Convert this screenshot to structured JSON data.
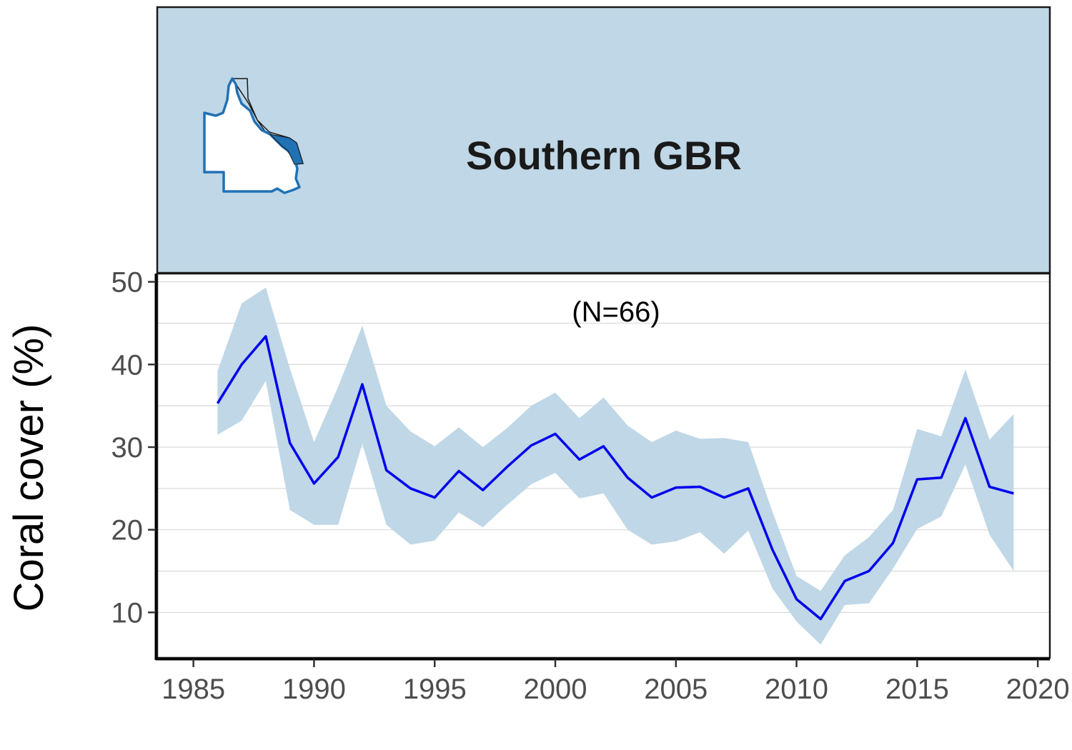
{
  "chart_data": {
    "type": "line",
    "title": "Southern GBR",
    "annotation": "(N=66)",
    "xlabel": "",
    "ylabel": "Coral cover (%)",
    "xlim": [
      1983.5,
      2020.5
    ],
    "ylim": [
      4.5,
      51
    ],
    "xticks": [
      1985,
      1990,
      1995,
      2000,
      2005,
      2010,
      2015,
      2020
    ],
    "yticks": [
      10,
      20,
      30,
      40,
      50
    ],
    "minor_ygrid": [
      15,
      25,
      35,
      45
    ],
    "grid": "horizontal",
    "x": [
      1986,
      1987,
      1988,
      1989,
      1990,
      1991,
      1992,
      1993,
      1994,
      1995,
      1996,
      1997,
      1998,
      1999,
      2000,
      2001,
      2002,
      2003,
      2004,
      2005,
      2006,
      2007,
      2008,
      2009,
      2010,
      2011,
      2012,
      2013,
      2014,
      2015,
      2016,
      2017,
      2018,
      2019
    ],
    "y": [
      35.3,
      40.0,
      43.4,
      30.5,
      25.6,
      28.8,
      37.6,
      27.2,
      25.0,
      23.9,
      27.1,
      24.8,
      27.6,
      30.2,
      31.6,
      28.5,
      30.1,
      26.3,
      23.9,
      25.1,
      25.2,
      23.9,
      25.0,
      17.6,
      11.6,
      9.2,
      13.8,
      15.0,
      18.4,
      26.1,
      26.3,
      33.5,
      25.2,
      24.4
    ],
    "lower": [
      31.5,
      33.2,
      38.0,
      22.4,
      20.6,
      20.6,
      30.4,
      20.6,
      18.2,
      18.7,
      22.1,
      20.3,
      23.0,
      25.5,
      26.9,
      23.8,
      24.4,
      20.0,
      18.2,
      18.6,
      19.7,
      17.1,
      19.9,
      12.9,
      8.9,
      6.1,
      10.9,
      11.1,
      15.3,
      20.1,
      21.6,
      27.9,
      19.4,
      15.0
    ],
    "upper": [
      39.2,
      47.4,
      49.3,
      39.5,
      30.6,
      37.3,
      44.7,
      35.0,
      31.9,
      30.1,
      32.4,
      30.0,
      32.3,
      35.0,
      36.6,
      33.5,
      36.0,
      32.6,
      30.6,
      32.0,
      31.0,
      31.1,
      30.6,
      22.2,
      14.4,
      12.6,
      16.9,
      19.1,
      22.4,
      32.2,
      31.3,
      39.4,
      30.9,
      34.0
    ],
    "colors": {
      "line": "#0000ee",
      "ribbon": "#bfd7e6",
      "header_bg": "#bfd7e6",
      "map_region": "#2171b5",
      "grid": "#d9d9d9"
    }
  },
  "header": {
    "map_icon": "queensland-map-icon"
  }
}
